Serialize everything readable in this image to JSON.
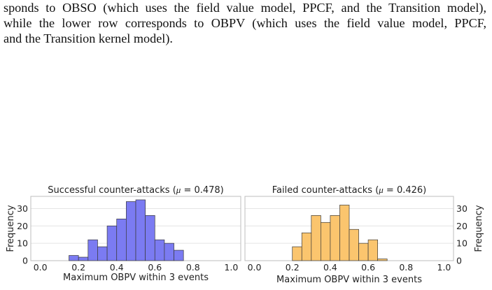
{
  "text": {
    "lines": [
      "sponds to OBSO (which uses the field value model, PPCF, and the Transition model),",
      "while the lower row corresponds to OBPV (which uses the field value model, PPCF,",
      "and the Transition kernel model)."
    ]
  },
  "chart_data": [
    {
      "type": "bar",
      "title_main": "Successful counter-attacks (",
      "title_mu": "μ",
      "title_rest": " = 0.478)",
      "xlabel": "Maximum OBPV within 3 events",
      "ylabel": "Frequency",
      "xlim": [
        -0.05,
        1.05
      ],
      "ylim": [
        0,
        37
      ],
      "xticks": [
        "0.0",
        "0.2",
        "0.4",
        "0.6",
        "0.8",
        "1.0"
      ],
      "yticks": [
        "0",
        "10",
        "20",
        "30"
      ],
      "y_axis_side": "left",
      "grid": true,
      "bin_width": 0.05,
      "bins": [
        {
          "x": 0.15,
          "y": 3
        },
        {
          "x": 0.2,
          "y": 2
        },
        {
          "x": 0.25,
          "y": 12
        },
        {
          "x": 0.3,
          "y": 8
        },
        {
          "x": 0.35,
          "y": 20
        },
        {
          "x": 0.4,
          "y": 24
        },
        {
          "x": 0.45,
          "y": 34
        },
        {
          "x": 0.5,
          "y": 35
        },
        {
          "x": 0.55,
          "y": 26
        },
        {
          "x": 0.6,
          "y": 12
        },
        {
          "x": 0.65,
          "y": 10
        },
        {
          "x": 0.7,
          "y": 6
        }
      ],
      "color": "#7b7bf2"
    },
    {
      "type": "bar",
      "title_main": "Failed counter-attacks (",
      "title_mu": "μ",
      "title_rest": " = 0.426)",
      "xlabel": "Maximum OBPV within 3 events",
      "ylabel": "Frequency",
      "xlim": [
        -0.05,
        1.05
      ],
      "ylim": [
        0,
        37
      ],
      "xticks": [
        "0.0",
        "0.2",
        "0.4",
        "0.6",
        "0.8",
        "1.0"
      ],
      "yticks": [
        "0",
        "10",
        "20",
        "30"
      ],
      "y_axis_side": "right",
      "grid": true,
      "bin_width": 0.05,
      "bins": [
        {
          "x": 0.2,
          "y": 8
        },
        {
          "x": 0.25,
          "y": 16
        },
        {
          "x": 0.3,
          "y": 26
        },
        {
          "x": 0.35,
          "y": 22
        },
        {
          "x": 0.4,
          "y": 26
        },
        {
          "x": 0.45,
          "y": 32
        },
        {
          "x": 0.5,
          "y": 18
        },
        {
          "x": 0.55,
          "y": 10
        },
        {
          "x": 0.6,
          "y": 12
        },
        {
          "x": 0.65,
          "y": 1
        }
      ],
      "color": "#fbc56e"
    }
  ]
}
